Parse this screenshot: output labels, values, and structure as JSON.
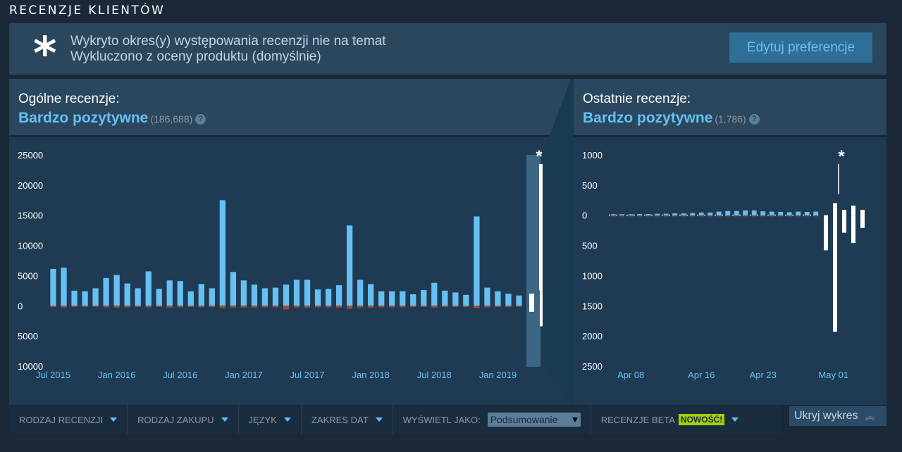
{
  "section_title": "RECENZJE KLIENTÓW",
  "notice": {
    "symbol": "*",
    "line1": "Wykryto okres(y) występowania recenzji nie na temat",
    "line2": "Wykluczono z oceny produktu (domyślnie)",
    "button": "Edytuj preferencje"
  },
  "overall": {
    "header": "Ogólne recenzje:",
    "rating": "Bardzo pozytywne",
    "count": "(186,688)",
    "help": "?"
  },
  "recent": {
    "header": "Ostatnie recenzje:",
    "rating": "Bardzo pozytywne",
    "count": "(1,786)",
    "help": "?"
  },
  "colors": {
    "positive": "#66c0f4",
    "negative": "#a34c25",
    "offtopic": "#ffffff"
  },
  "chart_data": [
    {
      "type": "bar",
      "y_tick_labels": [
        "25000",
        "20000",
        "15000",
        "10000",
        "5000",
        "0",
        "5000",
        "10000"
      ],
      "y_ticks": [
        25000,
        20000,
        15000,
        10000,
        5000,
        0,
        -5000,
        -10000
      ],
      "ylim": [
        -10000,
        25000
      ],
      "x_tick_labels": [
        "Jul 2015",
        "Jan 2016",
        "Jul 2016",
        "Jan 2017",
        "Jul 2017",
        "Jan 2018",
        "Jul 2018",
        "Jan 2019"
      ],
      "x_tick_index": [
        0,
        6,
        12,
        18,
        24,
        30,
        36,
        42
      ],
      "positive": [
        6100,
        6300,
        2500,
        2400,
        2900,
        4600,
        5100,
        3700,
        2900,
        5700,
        2800,
        4200,
        4100,
        2400,
        3600,
        2900,
        17500,
        5600,
        4200,
        3500,
        2900,
        3000,
        3500,
        4300,
        4300,
        2700,
        2800,
        3400,
        13300,
        4300,
        3600,
        2400,
        2400,
        2400,
        1900,
        2600,
        3800,
        2500,
        2200,
        1800,
        14800,
        3000,
        2400,
        2000,
        1700
      ],
      "negative": [
        200,
        300,
        150,
        150,
        150,
        250,
        300,
        250,
        200,
        250,
        200,
        300,
        250,
        200,
        250,
        200,
        400,
        300,
        300,
        300,
        250,
        250,
        600,
        300,
        300,
        250,
        250,
        300,
        500,
        300,
        300,
        250,
        250,
        250,
        200,
        200,
        300,
        200,
        200,
        200,
        400,
        250,
        200,
        200,
        150
      ],
      "offtopic_marker": "*",
      "offtopic_positive": [
        2000,
        23500
      ],
      "offtopic_negative": [
        1000,
        3400
      ]
    },
    {
      "type": "bar",
      "y_tick_labels": [
        "1000",
        "500",
        "0",
        "500",
        "1000",
        "1500",
        "2000",
        "2500"
      ],
      "y_ticks": [
        1000,
        500,
        0,
        -500,
        -1000,
        -1500,
        -2000,
        -2500
      ],
      "ylim": [
        -2500,
        1000
      ],
      "x_tick_labels": [
        "Apr 08",
        "Apr 16",
        "Apr 23",
        "May 01"
      ],
      "x_tick_index": [
        2,
        10,
        17,
        25
      ],
      "positive": [
        15,
        15,
        15,
        20,
        20,
        25,
        25,
        30,
        30,
        35,
        45,
        45,
        60,
        70,
        70,
        80,
        80,
        65,
        60,
        55,
        50,
        60,
        55,
        60
      ],
      "negative": [
        5,
        5,
        5,
        5,
        5,
        5,
        5,
        5,
        5,
        5,
        5,
        5,
        5,
        5,
        5,
        10,
        10,
        10,
        10,
        5,
        5,
        5,
        5,
        5
      ],
      "offtopic_marker": "*",
      "offtopic_positive": [
        0,
        200,
        90,
        160,
        90
      ],
      "offtopic_negative": [
        580,
        1930,
        290,
        460,
        210
      ],
      "offtopic_spike": 850
    }
  ],
  "filters": {
    "review_type": "RODZAJ RECENZJI",
    "purchase_type": "RODZAJ ZAKUPU",
    "language": "JĘZYK",
    "date_range": "ZAKRES DAT",
    "display_as_label": "WYŚWIETL JAKO:",
    "display_value": "Podsumowanie",
    "beta_reviews": "RECENZJE BETA",
    "new_badge": "NOWOŚĆ!",
    "hide_chart": "Ukryj wykres"
  }
}
